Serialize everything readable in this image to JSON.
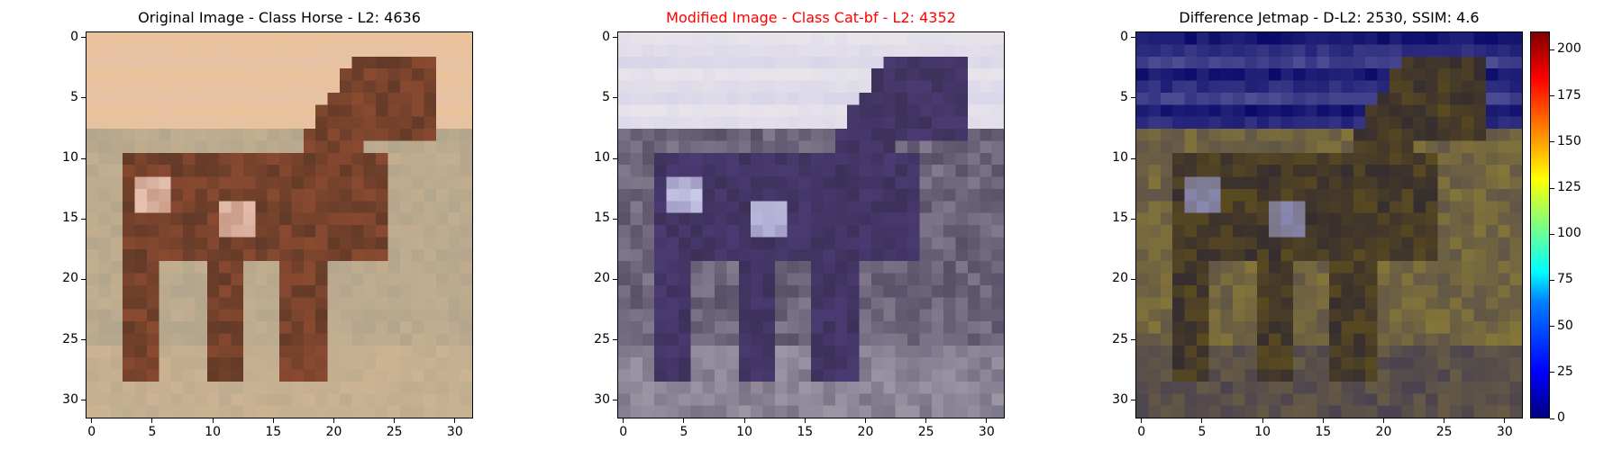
{
  "chart_data": [
    {
      "type": "heatmap",
      "title": "Original Image - Class Horse - L2: 4636",
      "title_color": "#000000",
      "xticks": [
        "0",
        "5",
        "10",
        "15",
        "20",
        "25",
        "30"
      ],
      "yticks": [
        "0",
        "5",
        "10",
        "15",
        "20",
        "25",
        "30"
      ],
      "xlim": [
        -0.5,
        31.5
      ],
      "ylim": [
        31.5,
        -0.5
      ],
      "grid": false,
      "palette": {
        "sky": "#e8c39a",
        "ground": "#a9a08a",
        "body": "#8a4a30",
        "dark": "#3a2a20",
        "light": "#e6c0b0"
      }
    },
    {
      "type": "heatmap",
      "title": "Modified Image - Class Cat-bf - L2: 4352",
      "title_color": "#ff0000",
      "xticks": [
        "0",
        "5",
        "10",
        "15",
        "20",
        "25",
        "30"
      ],
      "yticks": [
        "0",
        "5",
        "10",
        "15",
        "20",
        "25",
        "30"
      ],
      "xlim": [
        -0.5,
        31.5
      ],
      "ylim": [
        31.5,
        -0.5
      ],
      "grid": false,
      "palette": {
        "sky": "#e9e4ea",
        "ground": "#3d3550",
        "body": "#4a3a72",
        "dark": "#2e2840",
        "light": "#c8c8e8"
      }
    },
    {
      "type": "heatmap",
      "title": "Difference Jetmap - D-L2: 2530, SSIM: 4.6",
      "title_color": "#000000",
      "xticks": [
        "0",
        "5",
        "10",
        "15",
        "20",
        "25",
        "30"
      ],
      "yticks": [
        "0",
        "5",
        "10",
        "15",
        "20",
        "25",
        "30"
      ],
      "xlim": [
        -0.5,
        31.5
      ],
      "ylim": [
        31.5,
        -0.5
      ],
      "grid": false,
      "palette": {
        "sky": "#0a0a6a",
        "ground": "#9a8830",
        "body": "#5a4a20",
        "dark": "#101040",
        "light": "#8a8ab8"
      },
      "colorbar": {
        "colormap": "jet",
        "range": [
          0,
          210
        ],
        "ticks": [
          "0",
          "25",
          "50",
          "75",
          "100",
          "125",
          "150",
          "175",
          "200"
        ]
      }
    }
  ]
}
